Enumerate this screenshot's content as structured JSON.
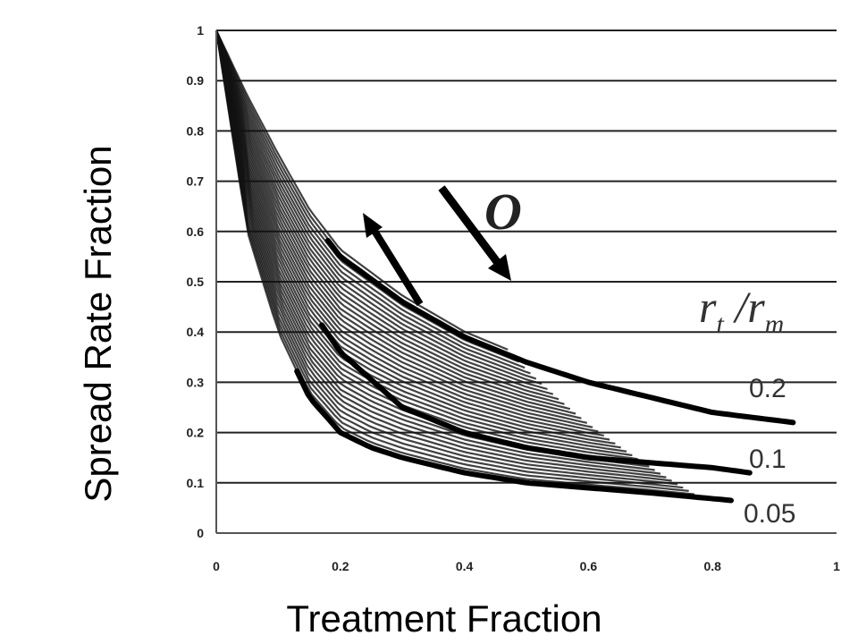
{
  "chart_data": {
    "type": "line",
    "xlabel": "Treatment Fraction",
    "ylabel": "Spread Rate Fraction",
    "xlim": [
      0,
      1
    ],
    "ylim": [
      0,
      1
    ],
    "x_ticks": [
      "0",
      "0.2",
      "0.4",
      "0.6",
      "0.8",
      "1"
    ],
    "y_ticks": [
      "0",
      "0.1",
      "0.2",
      "0.3",
      "0.4",
      "0.5",
      "0.6",
      "0.7",
      "0.8",
      "0.9",
      "1"
    ],
    "grid": "horizontal",
    "legend_title_main": "r",
    "legend_title_sub1": "t",
    "legend_title_mid": " /r",
    "legend_title_sub2": "m",
    "annotation": "O",
    "series": [
      {
        "name": "0.2",
        "x": [
          0,
          0.05,
          0.1,
          0.15,
          0.2,
          0.3,
          0.4,
          0.5,
          0.6,
          0.7,
          0.8,
          0.93
        ],
        "y": [
          1,
          0.86,
          0.74,
          0.63,
          0.55,
          0.46,
          0.39,
          0.34,
          0.3,
          0.27,
          0.24,
          0.22
        ]
      },
      {
        "name": "0.1",
        "x": [
          0,
          0.05,
          0.1,
          0.15,
          0.2,
          0.3,
          0.4,
          0.5,
          0.6,
          0.7,
          0.8,
          0.86
        ],
        "y": [
          1,
          0.75,
          0.56,
          0.45,
          0.36,
          0.25,
          0.2,
          0.17,
          0.15,
          0.14,
          0.13,
          0.12
        ]
      },
      {
        "name": "0.05",
        "x": [
          0,
          0.05,
          0.1,
          0.15,
          0.2,
          0.25,
          0.3,
          0.4,
          0.5,
          0.6,
          0.7,
          0.83
        ],
        "y": [
          1,
          0.6,
          0.4,
          0.27,
          0.2,
          0.17,
          0.15,
          0.12,
          0.1,
          0.09,
          0.08,
          0.065
        ]
      }
    ]
  }
}
